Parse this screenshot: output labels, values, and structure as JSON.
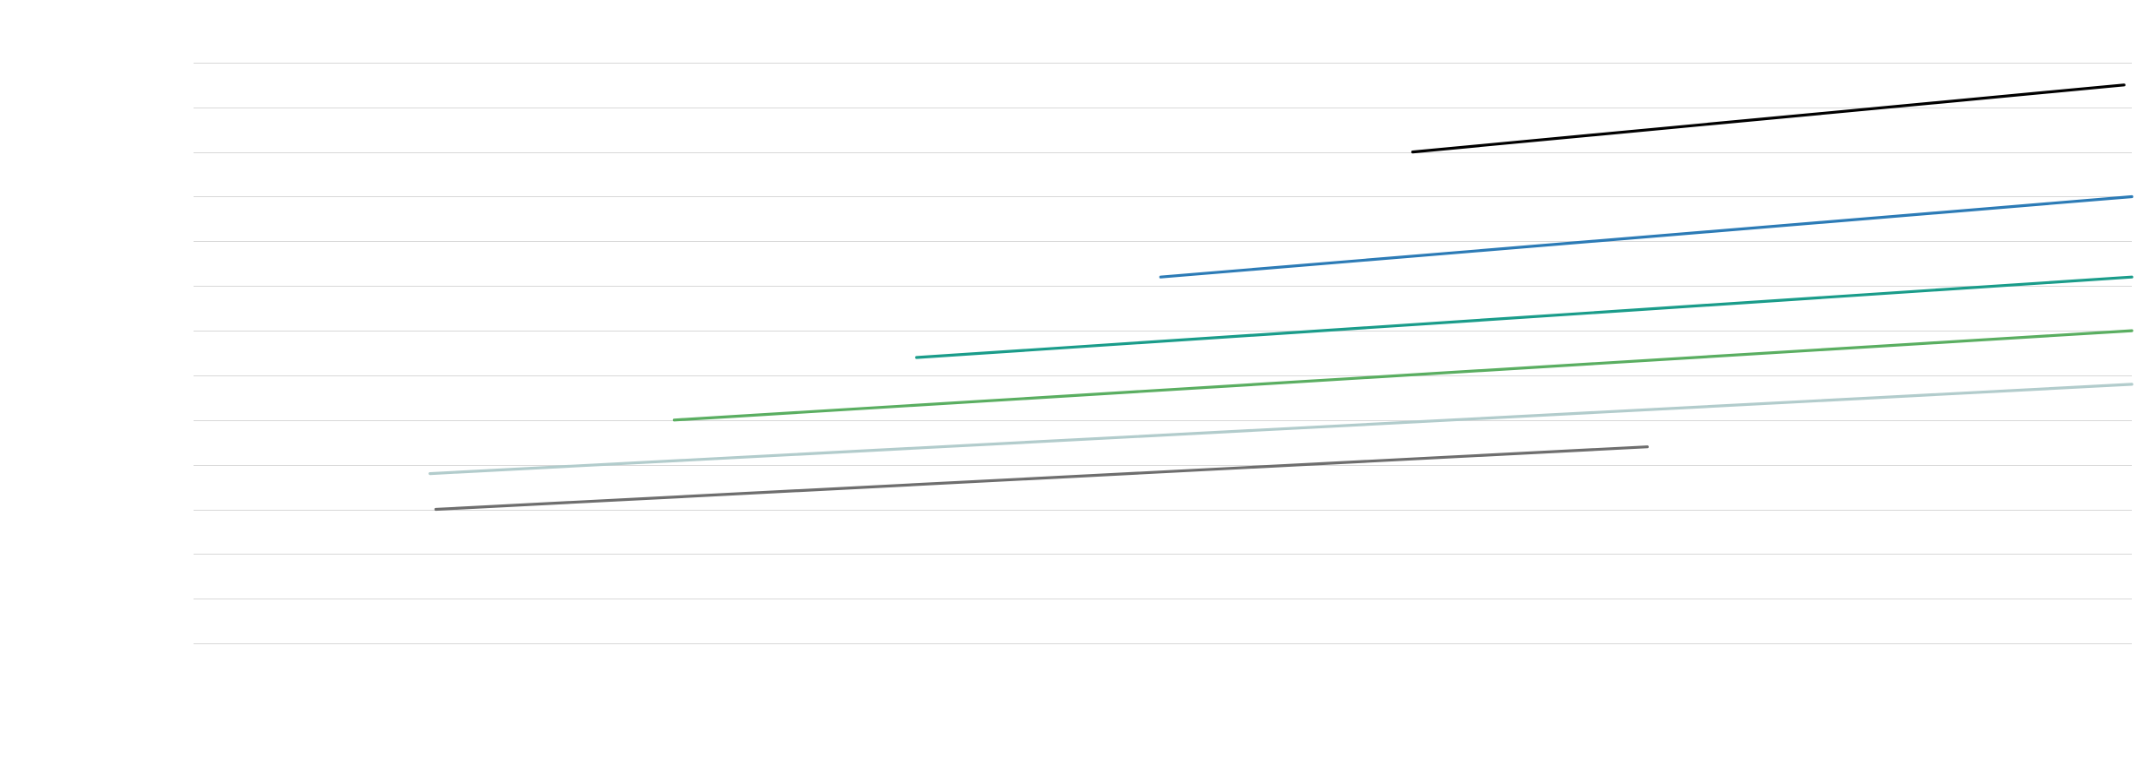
{
  "chart_data": {
    "type": "line",
    "title": "",
    "xlabel": "",
    "ylabel": "",
    "xlim": [
      0,
      100
    ],
    "ylim": [
      0,
      15
    ],
    "yticks": [
      1,
      2,
      3,
      4,
      5,
      6,
      7,
      8,
      9,
      10,
      11,
      12,
      13,
      14
    ],
    "grid": true,
    "legend": "none",
    "series": [
      {
        "color": "#000000",
        "x": [
          62.9,
          99.6
        ],
        "y": [
          12.0,
          13.5
        ]
      },
      {
        "color": "#2c7bb6",
        "x": [
          49.9,
          100.0
        ],
        "y": [
          9.2,
          11.0
        ]
      },
      {
        "color": "#1a9c8a",
        "x": [
          37.3,
          100.0
        ],
        "y": [
          7.4,
          9.2
        ]
      },
      {
        "color": "#5aae61",
        "x": [
          24.8,
          100.0
        ],
        "y": [
          6.0,
          8.0
        ]
      },
      {
        "color": "#b2cccc",
        "x": [
          12.2,
          100.0
        ],
        "y": [
          4.8,
          6.8
        ]
      },
      {
        "color": "#6e6e6e",
        "x": [
          12.5,
          75.0
        ],
        "y": [
          4.0,
          5.4
        ]
      }
    ]
  }
}
